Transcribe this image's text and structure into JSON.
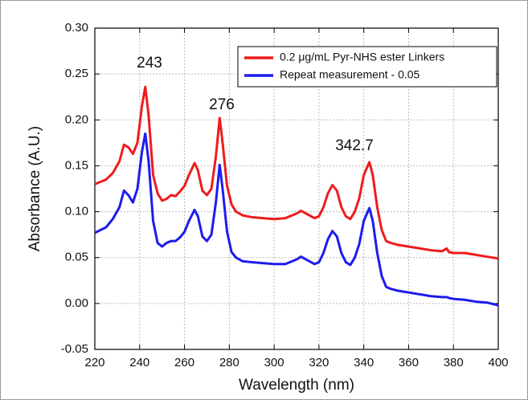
{
  "chart_data": {
    "type": "line",
    "xlabel": "Wavelength (nm)",
    "ylabel": "Absorbance (A.U.)",
    "x": [
      220,
      225,
      228,
      231,
      233,
      235,
      237,
      239,
      241,
      242.5,
      244,
      246,
      248,
      250,
      252,
      254,
      256,
      258,
      260,
      262,
      264.5,
      266,
      268,
      270,
      272,
      274,
      275.7,
      277,
      279,
      281,
      283,
      286,
      290,
      295,
      300,
      305,
      310,
      312,
      315,
      318,
      320,
      322,
      324,
      326,
      328,
      330,
      332,
      334,
      336,
      338,
      340,
      342.5,
      344,
      346,
      348,
      350,
      352,
      355,
      360,
      365,
      370,
      375,
      377,
      378,
      380,
      385,
      390,
      395,
      400
    ],
    "series": [
      {
        "name": "0.2 μg/mL Pyr-NHS ester Linkers",
        "color": "#ee1c1c",
        "values": [
          0.13,
          0.135,
          0.142,
          0.155,
          0.173,
          0.17,
          0.163,
          0.175,
          0.215,
          0.236,
          0.205,
          0.14,
          0.12,
          0.112,
          0.114,
          0.118,
          0.117,
          0.122,
          0.128,
          0.14,
          0.153,
          0.145,
          0.123,
          0.118,
          0.125,
          0.16,
          0.202,
          0.175,
          0.128,
          0.108,
          0.1,
          0.096,
          0.094,
          0.093,
          0.092,
          0.093,
          0.098,
          0.101,
          0.097,
          0.093,
          0.095,
          0.105,
          0.12,
          0.129,
          0.123,
          0.105,
          0.095,
          0.092,
          0.1,
          0.115,
          0.14,
          0.154,
          0.14,
          0.105,
          0.08,
          0.068,
          0.066,
          0.064,
          0.062,
          0.06,
          0.058,
          0.057,
          0.06,
          0.056,
          0.055,
          0.055,
          0.053,
          0.051,
          0.049
        ]
      },
      {
        "name": "Repeat measurement - 0.05",
        "color": "#1c1cee",
        "values": [
          0.077,
          0.083,
          0.092,
          0.105,
          0.123,
          0.118,
          0.11,
          0.125,
          0.165,
          0.185,
          0.155,
          0.09,
          0.066,
          0.062,
          0.066,
          0.068,
          0.068,
          0.072,
          0.078,
          0.09,
          0.102,
          0.095,
          0.073,
          0.068,
          0.075,
          0.11,
          0.151,
          0.125,
          0.078,
          0.056,
          0.05,
          0.046,
          0.045,
          0.044,
          0.043,
          0.043,
          0.048,
          0.051,
          0.047,
          0.043,
          0.045,
          0.055,
          0.07,
          0.079,
          0.073,
          0.055,
          0.045,
          0.042,
          0.05,
          0.065,
          0.09,
          0.104,
          0.09,
          0.055,
          0.03,
          0.018,
          0.016,
          0.014,
          0.012,
          0.01,
          0.008,
          0.007,
          0.007,
          0.006,
          0.005,
          0.004,
          0.002,
          0.001,
          -0.002
        ]
      }
    ],
    "annotations": [
      "243",
      "276",
      "342.7"
    ],
    "xlim": [
      220,
      400
    ],
    "xticks": [
      220,
      240,
      260,
      280,
      300,
      320,
      340,
      360,
      380,
      400
    ],
    "ylim": [
      -0.05,
      0.3
    ],
    "yticks": [
      {
        "value": -0.05,
        "label": "-0.05"
      },
      {
        "value": 0,
        "label": "0.00"
      },
      {
        "value": 0.05,
        "label": "0.05"
      },
      {
        "value": 0.1,
        "label": "0.10"
      },
      {
        "value": 0.15,
        "label": "0.15"
      },
      {
        "value": 0.2,
        "label": "0.20"
      },
      {
        "value": 0.25,
        "label": "0.25"
      },
      {
        "value": 0.3,
        "label": "0.30"
      }
    ],
    "grid": true,
    "legend": "upper right"
  }
}
